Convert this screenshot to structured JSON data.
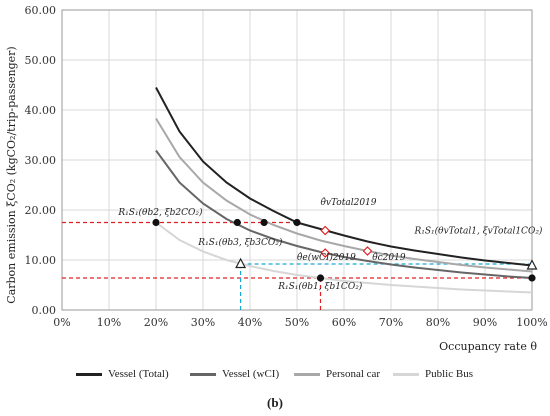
{
  "chart_data": {
    "type": "line",
    "ylabel": "Carbon emission ξCO₂ (kgCO₂/trip-passenger)",
    "xlabel": "Occupancy rate θ",
    "xlim": [
      0,
      100
    ],
    "ylim": [
      0,
      60
    ],
    "x_ticks": [
      "0%",
      "10%",
      "20%",
      "30%",
      "40%",
      "50%",
      "60%",
      "70%",
      "80%",
      "90%",
      "100%"
    ],
    "y_ticks": [
      "0.00",
      "10.00",
      "20.00",
      "30.00",
      "40.00",
      "50.00",
      "60.00"
    ],
    "grid": true,
    "legend_position": "bottom",
    "series": [
      {
        "name": "Vessel (Total)",
        "color": "#222222",
        "x": [
          20,
          25,
          30,
          35,
          40,
          45,
          50,
          55,
          60,
          65,
          70,
          75,
          80,
          85,
          90,
          95,
          100
        ],
        "y": [
          44.5,
          35.7,
          29.7,
          25.5,
          22.3,
          19.8,
          17.5,
          16.2,
          14.9,
          13.7,
          12.7,
          11.9,
          11.2,
          10.5,
          9.9,
          9.4,
          8.9
        ]
      },
      {
        "name": "Vessel (wCI)",
        "color": "#666666",
        "x": [
          20,
          25,
          30,
          35,
          40,
          45,
          50,
          55,
          60,
          65,
          70,
          75,
          80,
          85,
          90,
          95,
          100
        ],
        "y": [
          31.9,
          25.5,
          21.3,
          18.2,
          15.9,
          14.2,
          12.8,
          11.6,
          10.6,
          9.8,
          9.1,
          8.5,
          8.0,
          7.5,
          7.1,
          6.7,
          6.4
        ]
      },
      {
        "name": "Personal car",
        "color": "#a8a8a8",
        "x": [
          20,
          25,
          30,
          35,
          40,
          45,
          50,
          55,
          60,
          65,
          70,
          75,
          80,
          85,
          90,
          95,
          100
        ],
        "y": [
          38.3,
          30.6,
          25.5,
          21.9,
          19.1,
          17.0,
          15.3,
          13.9,
          12.8,
          11.8,
          10.9,
          10.2,
          9.6,
          9.0,
          8.5,
          8.1,
          7.7
        ]
      },
      {
        "name": "Public Bus",
        "color": "#d6d6d6",
        "x": [
          20,
          25,
          30,
          35,
          40,
          45,
          50,
          55,
          60,
          65,
          70,
          75,
          80,
          85,
          90,
          95,
          100
        ],
        "y": [
          17.5,
          14.0,
          11.7,
          10.0,
          8.8,
          7.8,
          7.0,
          6.4,
          5.8,
          5.4,
          5.0,
          4.7,
          4.4,
          4.1,
          3.9,
          3.7,
          3.5
        ]
      }
    ],
    "points": [
      {
        "x": 20,
        "y": 17.5,
        "marker": "dot"
      },
      {
        "x": 37.3,
        "y": 17.5,
        "marker": "dot"
      },
      {
        "x": 43,
        "y": 17.5,
        "marker": "dot"
      },
      {
        "x": 50,
        "y": 17.5,
        "marker": "dot"
      },
      {
        "x": 55,
        "y": 6.4,
        "marker": "dot"
      },
      {
        "x": 100,
        "y": 6.4,
        "marker": "dot"
      },
      {
        "x": 38,
        "y": 9.2,
        "marker": "triangle"
      },
      {
        "x": 100,
        "y": 8.9,
        "marker": "triangle"
      },
      {
        "x": 56,
        "y": 15.9,
        "marker": "diamond"
      },
      {
        "x": 56,
        "y": 11.4,
        "marker": "diamond"
      },
      {
        "x": 65,
        "y": 11.8,
        "marker": "diamond"
      }
    ],
    "reference_lines": [
      {
        "color": "#e02020",
        "dir": "h",
        "value": 17.5,
        "from": 0,
        "to": 50
      },
      {
        "color": "#e02020",
        "dir": "h",
        "value": 6.4,
        "from": 0,
        "to": 100
      },
      {
        "color": "#e02020",
        "dir": "v",
        "value": 55,
        "from": 0,
        "to": 6.4
      },
      {
        "color": "#1aa7d8",
        "dir": "h",
        "value": 9.2,
        "from": 38,
        "to": 100
      },
      {
        "color": "#1aa7d8",
        "dir": "v",
        "value": 38,
        "from": 0,
        "to": 9.2
      }
    ],
    "annotations": [
      {
        "text": "R₁S₁(θb2, ξb2CO₂)",
        "x": 12,
        "y": 19.0
      },
      {
        "text": "θ̂vTotal2019",
        "x": 55,
        "y": 21.0
      },
      {
        "text": "R₁S₁(θb3, ξb3CO₂)",
        "x": 29,
        "y": 13.0
      },
      {
        "text": "θ̂e(wCI)2019",
        "x": 50,
        "y": 10.0
      },
      {
        "text": "θ̂c2019",
        "x": 66,
        "y": 10.0
      },
      {
        "text": "R₁S₁(θvTotal1, ξvTotal1CO₂)",
        "x": 75,
        "y": 15.3
      },
      {
        "text": "R₁S₁(θb1, ξb1CO₂)",
        "x": 46,
        "y": 4.2
      }
    ]
  },
  "caption": "(b)"
}
